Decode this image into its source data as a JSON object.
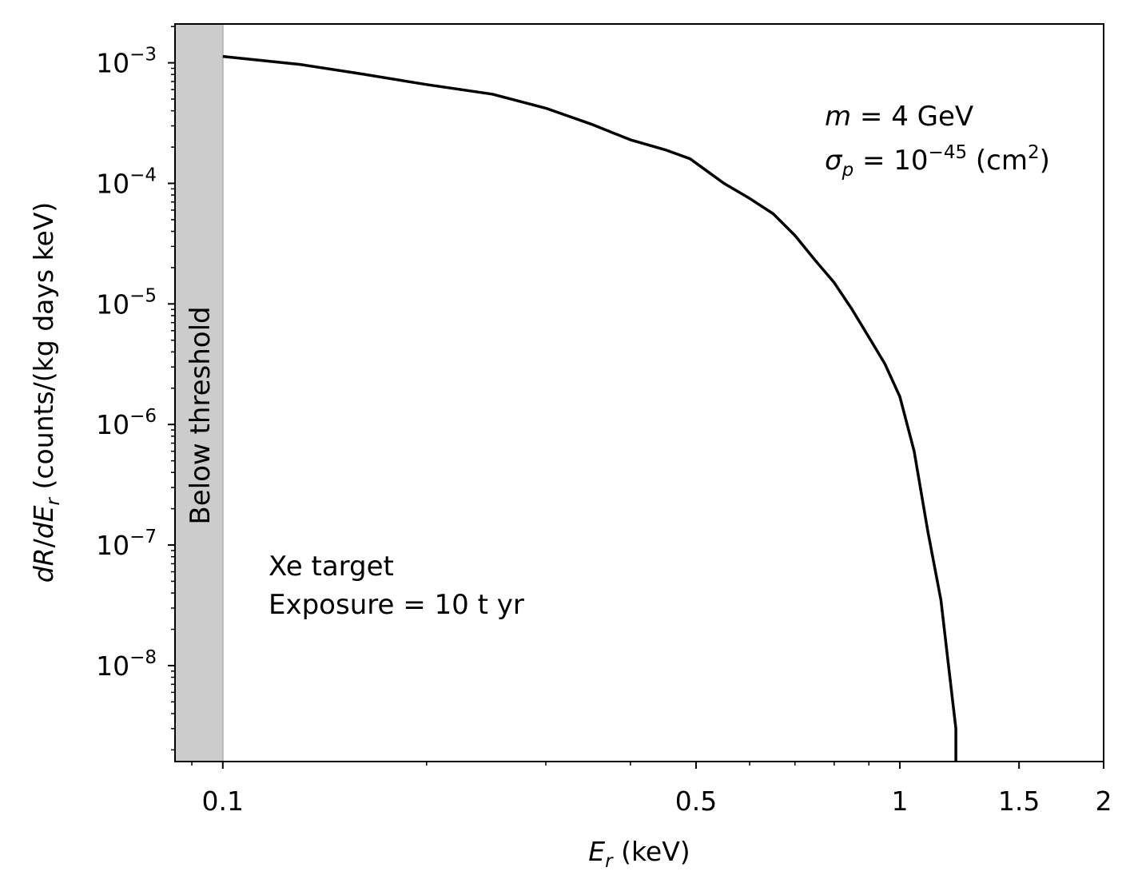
{
  "chart_data": {
    "type": "line",
    "title": "",
    "xlabel": {
      "sym": "E",
      "sub": "r",
      "unit": " (keV)"
    },
    "ylabel": {
      "dR": "dR",
      "slash": "/",
      "dE": "dE",
      "sub": "r",
      "unit": " (counts/(kg days keV)"
    },
    "xscale": "log",
    "yscale": "log",
    "xlim": [
      0.085,
      2
    ],
    "ylim": [
      1.6e-09,
      0.0021
    ],
    "x_ticks": [
      {
        "value": 0.1,
        "label": "0.1"
      },
      {
        "value": 0.5,
        "label": "0.5"
      },
      {
        "value": 1,
        "label": "1"
      },
      {
        "value": 1.5,
        "label": "1.5"
      },
      {
        "value": 2,
        "label": "2"
      }
    ],
    "y_ticks": [
      {
        "value": 0.001,
        "base": "10",
        "exp": "−3"
      },
      {
        "value": 0.0001,
        "base": "10",
        "exp": "−4"
      },
      {
        "value": 1e-05,
        "base": "10",
        "exp": "−5"
      },
      {
        "value": 1e-06,
        "base": "10",
        "exp": "−6"
      },
      {
        "value": 1e-07,
        "base": "10",
        "exp": "−7"
      },
      {
        "value": 1e-08,
        "base": "10",
        "exp": "−8"
      }
    ],
    "threshold_region": {
      "x_range": [
        0.085,
        0.1
      ],
      "label": "Below threshold",
      "color": "#cccccc"
    },
    "series": [
      {
        "color": "#000000",
        "x": [
          0.1,
          0.13,
          0.16,
          0.2,
          0.25,
          0.3,
          0.35,
          0.4,
          0.45,
          0.49,
          0.55,
          0.6,
          0.65,
          0.7,
          0.75,
          0.8,
          0.85,
          0.9,
          0.95,
          1.0,
          1.05,
          1.1,
          1.15,
          1.18,
          1.21,
          1.21
        ],
        "y": [
          0.00113,
          0.00097,
          0.00081,
          0.00066,
          0.00055,
          0.00042,
          0.00031,
          0.00023,
          0.00019,
          0.00016,
          0.0001,
          7.5e-05,
          5.6e-05,
          3.7e-05,
          2.3e-05,
          1.5e-05,
          9e-06,
          5.3e-06,
          3.2e-06,
          1.7e-06,
          6e-07,
          1.3e-07,
          3.5e-08,
          1e-08,
          3e-09,
          1.6e-09
        ]
      }
    ],
    "annotations": {
      "params": {
        "m_sym": "m",
        "m_text": " = 4 GeV",
        "sigma_sym": "σ",
        "sigma_sub": "p",
        "sigma_eq": " = 10",
        "sigma_exp": "−45",
        "sigma_unit": " (cm",
        "unit_exp": "2",
        "unit_close": ")"
      },
      "target_line1": "Xe target",
      "target_line2": "Exposure = 10 t yr"
    },
    "grid": false,
    "legend": "none"
  }
}
